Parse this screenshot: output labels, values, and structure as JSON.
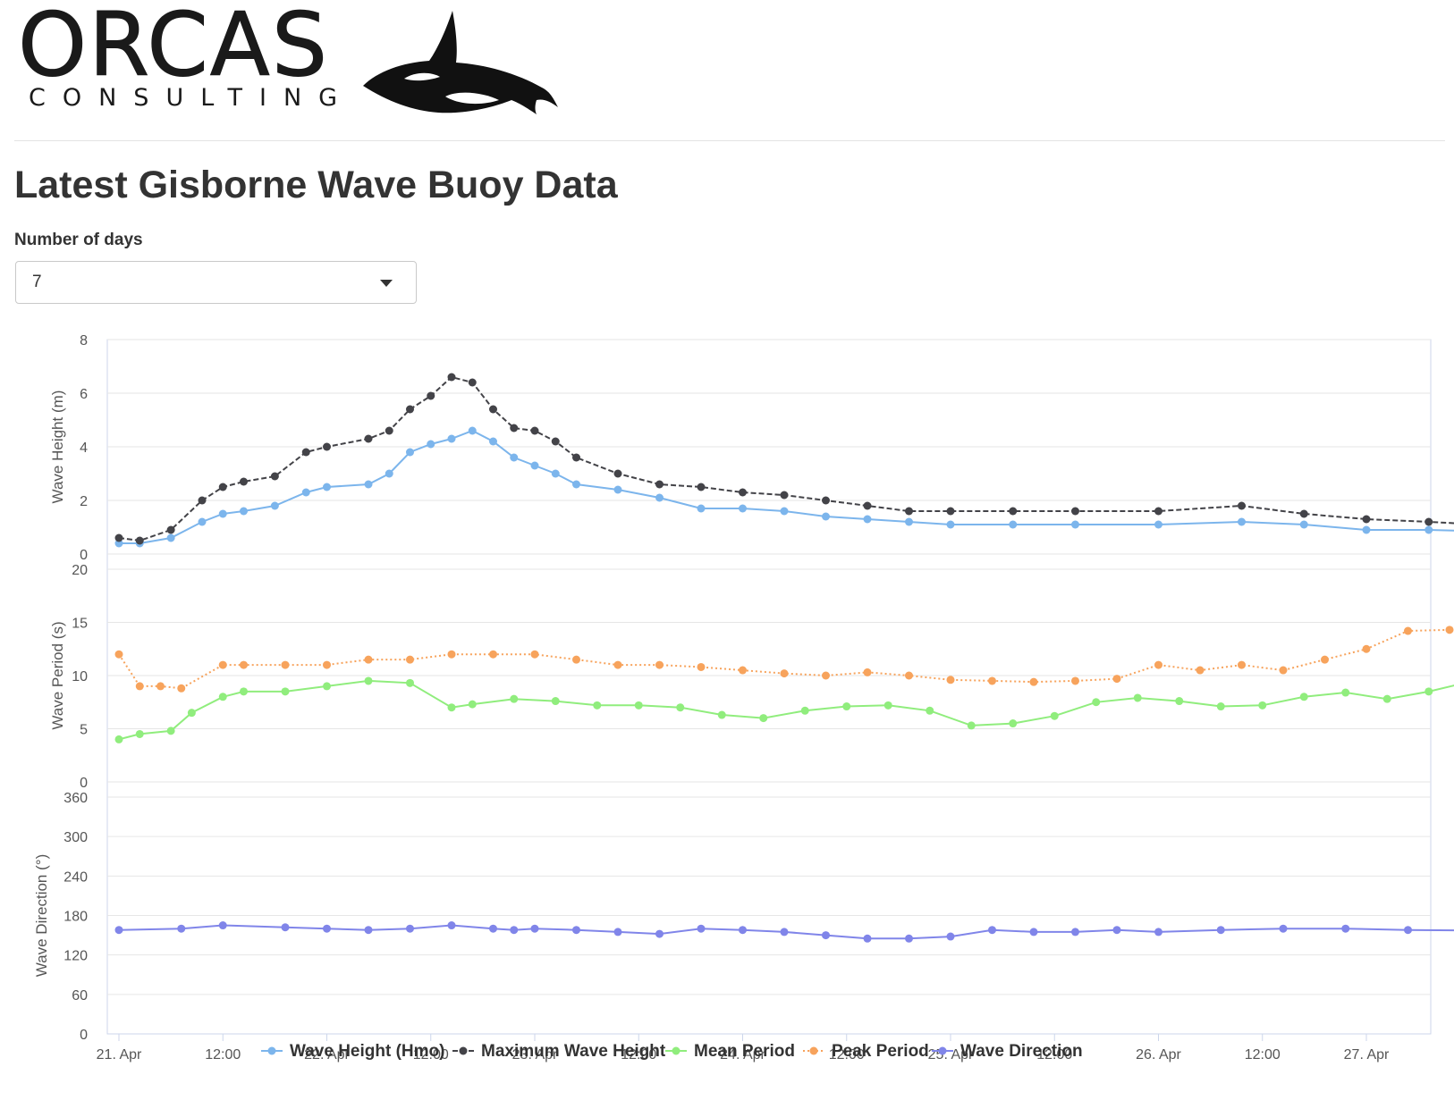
{
  "logo": {
    "word": "ORCAS",
    "sub": "CONSULTING"
  },
  "page": {
    "title": "Latest Gisborne Wave Buoy Data"
  },
  "control": {
    "label": "Number of days",
    "selected": "7",
    "caret_icon": "triangle-down-icon"
  },
  "chart_data": {
    "type": "line",
    "xlabel": "",
    "x_ticks": [
      "21. Apr",
      "12:00",
      "22. Apr",
      "12:00",
      "23. Apr",
      "12:00",
      "24. Apr",
      "12:00",
      "25. Apr",
      "12:00",
      "26. Apr",
      "12:00",
      "27. Apr"
    ],
    "x_range_days": [
      0,
      6.55
    ],
    "grid": true,
    "legend_position": "bottom-center",
    "panels": [
      {
        "ylabel": "Wave Height (m)",
        "ylim": [
          0,
          8
        ],
        "yticks": [
          0,
          2,
          4,
          6,
          8
        ]
      },
      {
        "ylabel": "Wave Period (s)",
        "ylim": [
          0,
          20
        ],
        "yticks": [
          0,
          5,
          10,
          15,
          20
        ]
      },
      {
        "ylabel": "Wave Direction (°)",
        "ylim": [
          0,
          360
        ],
        "yticks": [
          0,
          60,
          120,
          180,
          240,
          300,
          360
        ]
      }
    ],
    "series": [
      {
        "name": "Wave Height (Hmo)",
        "panel": 0,
        "color": "#7cb5ec",
        "dash": "solid",
        "x": [
          0,
          0.1,
          0.25,
          0.4,
          0.5,
          0.6,
          0.75,
          0.9,
          1.0,
          1.2,
          1.3,
          1.4,
          1.5,
          1.6,
          1.7,
          1.8,
          1.9,
          2.0,
          2.1,
          2.2,
          2.4,
          2.6,
          2.8,
          3.0,
          3.2,
          3.4,
          3.6,
          3.8,
          4.0,
          4.3,
          4.6,
          5.0,
          5.4,
          5.7,
          6.0,
          6.3,
          6.55
        ],
        "y": [
          0.4,
          0.4,
          0.6,
          1.2,
          1.5,
          1.6,
          1.8,
          2.3,
          2.5,
          2.6,
          3.0,
          3.8,
          4.1,
          4.3,
          4.6,
          4.2,
          3.6,
          3.3,
          3.0,
          2.6,
          2.4,
          2.1,
          1.7,
          1.7,
          1.6,
          1.4,
          1.3,
          1.2,
          1.1,
          1.1,
          1.1,
          1.1,
          1.2,
          1.1,
          0.9,
          0.9,
          0.85
        ]
      },
      {
        "name": "Maximum Wave Height",
        "panel": 0,
        "color": "#434348",
        "dash": "dash",
        "x": [
          0,
          0.1,
          0.25,
          0.4,
          0.5,
          0.6,
          0.75,
          0.9,
          1.0,
          1.2,
          1.3,
          1.4,
          1.5,
          1.6,
          1.7,
          1.8,
          1.9,
          2.0,
          2.1,
          2.2,
          2.4,
          2.6,
          2.8,
          3.0,
          3.2,
          3.4,
          3.6,
          3.8,
          4.0,
          4.3,
          4.6,
          5.0,
          5.4,
          5.7,
          6.0,
          6.3,
          6.55
        ],
        "y": [
          0.6,
          0.5,
          0.9,
          2.0,
          2.5,
          2.7,
          2.9,
          3.8,
          4.0,
          4.3,
          4.6,
          5.4,
          5.9,
          6.6,
          6.4,
          5.4,
          4.7,
          4.6,
          4.2,
          3.6,
          3.0,
          2.6,
          2.5,
          2.3,
          2.2,
          2.0,
          1.8,
          1.6,
          1.6,
          1.6,
          1.6,
          1.6,
          1.8,
          1.5,
          1.3,
          1.2,
          1.1
        ]
      },
      {
        "name": "Mean Period",
        "panel": 1,
        "color": "#90ed7d",
        "dash": "solid",
        "x": [
          0,
          0.1,
          0.25,
          0.35,
          0.5,
          0.6,
          0.8,
          1.0,
          1.2,
          1.4,
          1.6,
          1.7,
          1.9,
          2.1,
          2.3,
          2.5,
          2.7,
          2.9,
          3.1,
          3.3,
          3.5,
          3.7,
          3.9,
          4.1,
          4.3,
          4.5,
          4.7,
          4.9,
          5.1,
          5.3,
          5.5,
          5.7,
          5.9,
          6.1,
          6.3,
          6.45,
          6.55
        ],
        "y": [
          4.0,
          4.5,
          4.8,
          6.5,
          8.0,
          8.5,
          8.5,
          9.0,
          9.5,
          9.3,
          7.0,
          7.3,
          7.8,
          7.6,
          7.2,
          7.2,
          7.0,
          6.3,
          6.0,
          6.7,
          7.1,
          7.2,
          6.7,
          5.3,
          5.5,
          6.2,
          7.5,
          7.9,
          7.6,
          7.1,
          7.2,
          8.0,
          8.4,
          7.8,
          8.5,
          9.2,
          7.0
        ]
      },
      {
        "name": "Peak Period",
        "panel": 1,
        "color": "#f7a35c",
        "dash": "dot",
        "x": [
          0,
          0.1,
          0.2,
          0.3,
          0.5,
          0.6,
          0.8,
          1.0,
          1.2,
          1.4,
          1.6,
          1.8,
          2.0,
          2.2,
          2.4,
          2.6,
          2.8,
          3.0,
          3.2,
          3.4,
          3.6,
          3.8,
          4.0,
          4.2,
          4.4,
          4.6,
          4.8,
          5.0,
          5.2,
          5.4,
          5.6,
          5.8,
          6.0,
          6.2,
          6.4,
          6.55
        ],
        "y": [
          12.0,
          9.0,
          9.0,
          8.8,
          11.0,
          11.0,
          11.0,
          11.0,
          11.5,
          11.5,
          12.0,
          12.0,
          12.0,
          11.5,
          11.0,
          11.0,
          10.8,
          10.5,
          10.2,
          10.0,
          10.3,
          10.0,
          9.6,
          9.5,
          9.4,
          9.5,
          9.7,
          11.0,
          10.5,
          11.0,
          10.5,
          11.5,
          12.5,
          14.2,
          14.3,
          14.0
        ]
      },
      {
        "name": "Wave Direction",
        "panel": 2,
        "color": "#8085e9",
        "dash": "solid",
        "x": [
          0,
          0.3,
          0.5,
          0.8,
          1.0,
          1.2,
          1.4,
          1.6,
          1.8,
          1.9,
          2.0,
          2.2,
          2.4,
          2.6,
          2.8,
          3.0,
          3.2,
          3.4,
          3.6,
          3.8,
          4.0,
          4.2,
          4.4,
          4.6,
          4.8,
          5.0,
          5.3,
          5.6,
          5.9,
          6.2,
          6.55
        ],
        "y": [
          158,
          160,
          165,
          162,
          160,
          158,
          160,
          165,
          160,
          158,
          160,
          158,
          155,
          152,
          160,
          158,
          155,
          150,
          145,
          145,
          148,
          158,
          155,
          155,
          158,
          155,
          158,
          160,
          160,
          158,
          157
        ]
      }
    ]
  }
}
